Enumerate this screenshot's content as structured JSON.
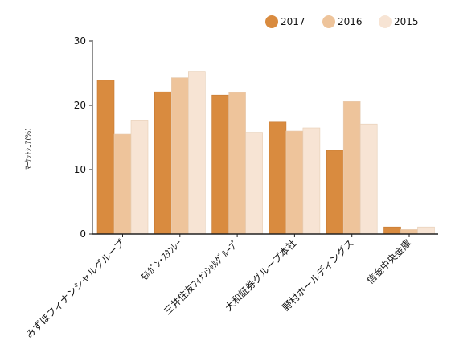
{
  "chart_data": {
    "type": "bar",
    "title": "",
    "xlabel": "",
    "ylabel": "ﾏｰｹｯﾄｼｪｱ(%)",
    "ylim": [
      0,
      30
    ],
    "yticks": [
      0,
      10,
      20,
      30
    ],
    "grid": false,
    "legend_position": "top-right",
    "categories": [
      "みずほフィナンシャルグループ",
      "ﾓﾙｶﾞﾝ･ｽﾀﾝﾚｰ",
      "三井住友ﾌｨﾅﾝｼｬﾙｸﾞﾙｰﾌﾟ",
      "大和証券グループ本社",
      "野村ホールディングス",
      "信金中央金庫"
    ],
    "series": [
      {
        "name": "2017",
        "color": "#d98b3f",
        "values": [
          23.9,
          22.1,
          21.6,
          17.4,
          13.0,
          1.1
        ]
      },
      {
        "name": "2016",
        "color": "#eec49b",
        "values": [
          15.5,
          24.3,
          22.0,
          16.0,
          20.6,
          0.7
        ]
      },
      {
        "name": "2015",
        "color": "#f7e4d4",
        "values": [
          17.7,
          25.3,
          15.8,
          16.5,
          17.1,
          1.1
        ]
      }
    ]
  }
}
